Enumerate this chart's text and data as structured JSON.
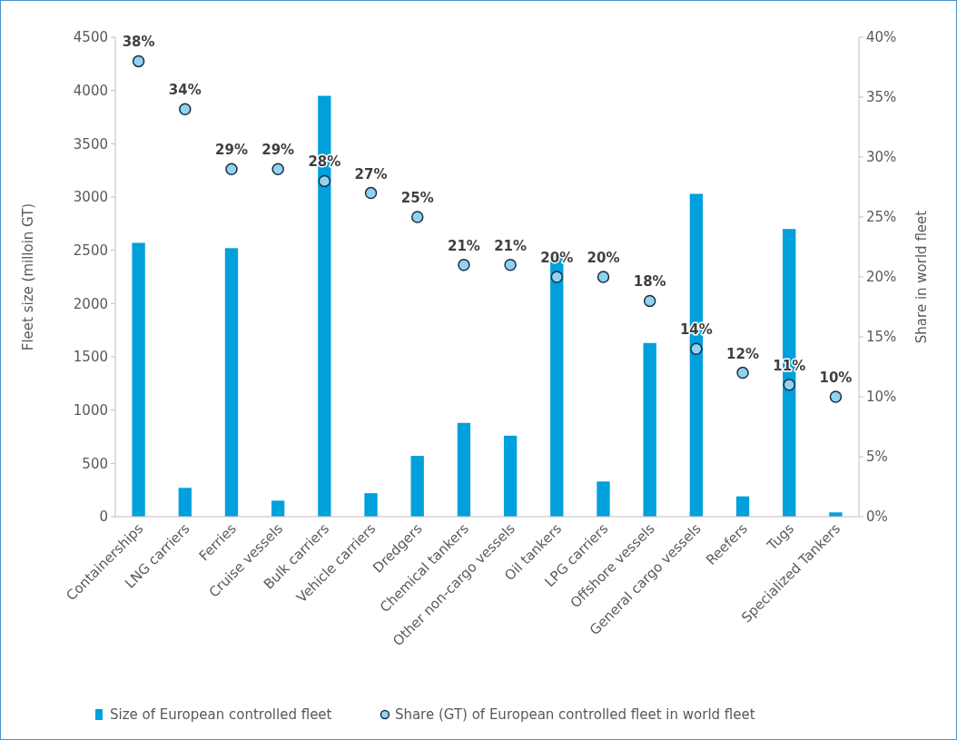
{
  "chart_data": {
    "type": "bar",
    "categories": [
      "Containerships",
      "LNG carriers",
      "Ferries",
      "Cruise vessels",
      "Bulk carriers",
      "Vehicle carriers",
      "Dredgers",
      "Chemical tankers",
      "Other non-cargo vessels",
      "Oil tankers",
      "LPG carriers",
      "Offshore vessels",
      "General cargo vessels",
      "Reefers",
      "Tugs",
      "Specialized Tankers"
    ],
    "series": [
      {
        "name": "Size of European controlled fleet",
        "color": "#00a0dc",
        "values": [
          2570,
          270,
          2520,
          150,
          3950,
          220,
          570,
          880,
          760,
          2480,
          330,
          1630,
          3030,
          190,
          2700,
          40
        ]
      },
      {
        "name": "Share (GT) of European controlled fleet in world fleet",
        "type": "scatter",
        "axis": "y2",
        "color": "#8fd3f4",
        "values": [
          38,
          34,
          29,
          29,
          28,
          27,
          25,
          21,
          21,
          20,
          20,
          18,
          14,
          12,
          11,
          10
        ],
        "value_labels": [
          "38%",
          "34%",
          "29%",
          "29%",
          "28%",
          "27%",
          "25%",
          "21%",
          "21%",
          "20%",
          "20%",
          "18%",
          "14%",
          "12%",
          "11%",
          "10%"
        ]
      }
    ],
    "ylabel": "Fleet size (milloin GT)",
    "y2label": "Share in world fleet",
    "ylim": [
      0,
      4500
    ],
    "yticks": [
      0,
      500,
      1000,
      1500,
      2000,
      2500,
      3000,
      3500,
      4000,
      4500
    ],
    "y2lim": [
      0,
      40
    ],
    "y2ticks": [
      {
        "value": 0,
        "label": "0%"
      },
      {
        "value": 5,
        "label": "5%"
      },
      {
        "value": 10,
        "label": "10%"
      },
      {
        "value": 15,
        "label": "15%"
      },
      {
        "value": 20,
        "label": "20%"
      },
      {
        "value": 25,
        "label": "25%"
      },
      {
        "value": 30,
        "label": "30%"
      },
      {
        "value": 35,
        "label": "35%"
      },
      {
        "value": 40,
        "label": "40%"
      }
    ],
    "marker": "circle",
    "legend": "bottom",
    "grid": false
  }
}
